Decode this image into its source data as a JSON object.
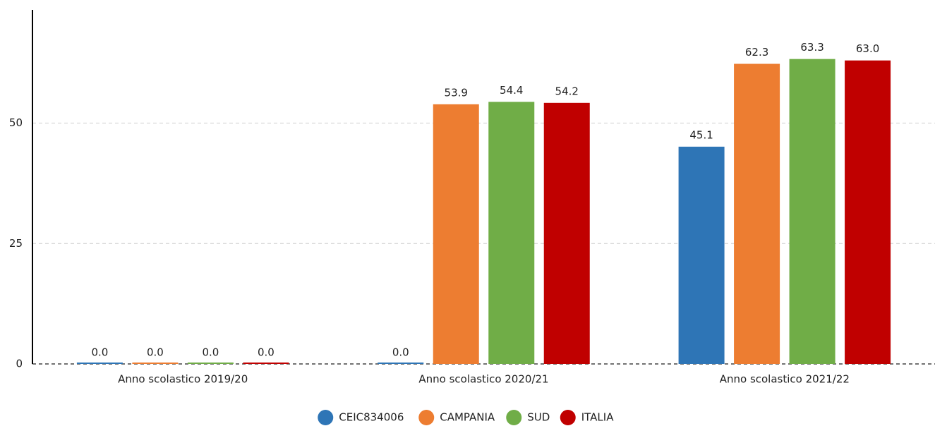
{
  "chart_data": {
    "type": "bar",
    "categories": [
      "Anno scolastico 2019/20",
      "Anno scolastico 2020/21",
      "Anno scolastico 2021/22"
    ],
    "series": [
      {
        "name": "CEIC834006",
        "color": "#2e75b6",
        "values": [
          0,
          0,
          45.1
        ],
        "value_labels": [
          "0.0",
          "0.0",
          "45.1"
        ]
      },
      {
        "name": "CAMPANIA",
        "color": "#ed7d31",
        "values": [
          0,
          53.9,
          62.3
        ],
        "value_labels": [
          "0.0",
          "53.9",
          "62.3"
        ]
      },
      {
        "name": "SUD",
        "color": "#70ad47",
        "values": [
          0,
          54.4,
          63.3
        ],
        "value_labels": [
          "0.0",
          "54.4",
          "63.3"
        ]
      },
      {
        "name": "ITALIA",
        "color": "#c00000",
        "values": [
          0,
          54.2,
          63.0
        ],
        "value_labels": [
          "0.0",
          "54.2",
          "63.0"
        ]
      }
    ],
    "ylim": [
      0,
      73.5
    ],
    "yticks": [
      0,
      25,
      50
    ],
    "grid": true,
    "legend": "bottom"
  }
}
